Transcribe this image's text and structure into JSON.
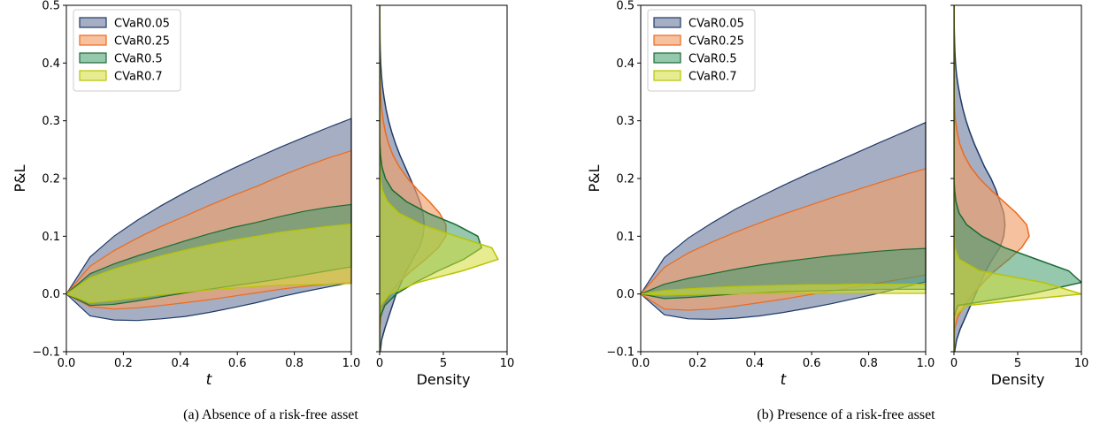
{
  "colors": {
    "CVaR0.05": {
      "fill": "#8e9ab4",
      "stroke": "#1f3a68",
      "alpha": 0.8
    },
    "CVaR0.25": {
      "fill": "#f0a06a",
      "stroke": "#ee6a1c",
      "alpha": 0.65
    },
    "CVaR0.5": {
      "fill": "#3f9a6b",
      "stroke": "#1b6b34",
      "alpha": 0.55
    },
    "CVaR0.7": {
      "fill": "#d4dc36",
      "stroke": "#b8c400",
      "alpha": 0.55
    }
  },
  "chart_data": [
    {
      "type": "area",
      "panel": "a-band",
      "caption": "(a) Absence of a risk-free asset",
      "xlabel": "t",
      "ylabel": "P&L",
      "xlim": [
        0,
        1
      ],
      "ylim": [
        -0.1,
        0.5
      ],
      "x_ticks": [
        "0.0",
        "0.2",
        "0.4",
        "0.6",
        "0.8",
        "1.0"
      ],
      "y_ticks": [
        "−0.1",
        "0.0",
        "0.1",
        "0.2",
        "0.3",
        "0.4",
        "0.5"
      ],
      "legend": [
        "CVaR0.05",
        "CVaR0.25",
        "CVaR0.5",
        "CVaR0.7"
      ],
      "legend_loc": "upper-left",
      "x": [
        0,
        0.083,
        0.167,
        0.25,
        0.333,
        0.417,
        0.5,
        0.583,
        0.667,
        0.75,
        0.833,
        0.917,
        1.0
      ],
      "series": [
        {
          "name": "CVaR0.05",
          "upper": [
            0,
            0.064,
            0.1,
            0.128,
            0.153,
            0.176,
            0.197,
            0.217,
            0.236,
            0.254,
            0.271,
            0.288,
            0.304
          ],
          "lower": [
            0,
            -0.038,
            -0.045,
            -0.046,
            -0.043,
            -0.039,
            -0.032,
            -0.024,
            -0.015,
            -0.005,
            0.004,
            0.012,
            0.02
          ]
        },
        {
          "name": "CVaR0.25",
          "upper": [
            0,
            0.048,
            0.075,
            0.097,
            0.117,
            0.135,
            0.153,
            0.17,
            0.186,
            0.204,
            0.22,
            0.235,
            0.248
          ],
          "lower": [
            0,
            -0.022,
            -0.026,
            -0.024,
            -0.02,
            -0.015,
            -0.01,
            -0.004,
            0.002,
            0.008,
            0.013,
            0.017,
            0.02
          ]
        },
        {
          "name": "CVaR0.5",
          "upper": [
            0,
            0.035,
            0.052,
            0.066,
            0.079,
            0.092,
            0.104,
            0.115,
            0.124,
            0.134,
            0.143,
            0.15,
            0.155
          ],
          "lower": [
            0,
            -0.02,
            -0.018,
            -0.012,
            -0.005,
            0.002,
            0.008,
            0.014,
            0.02,
            0.026,
            0.033,
            0.04,
            0.047
          ]
        },
        {
          "name": "CVaR0.7",
          "upper": [
            0,
            0.028,
            0.043,
            0.055,
            0.066,
            0.076,
            0.085,
            0.093,
            0.1,
            0.107,
            0.112,
            0.117,
            0.121
          ],
          "lower": [
            0,
            -0.015,
            -0.011,
            -0.006,
            -0.001,
            0.003,
            0.007,
            0.01,
            0.013,
            0.015,
            0.016,
            0.017,
            0.018
          ]
        }
      ]
    },
    {
      "type": "area",
      "panel": "a-density",
      "xlabel": "Density",
      "xlim": [
        0,
        10
      ],
      "ylim": [
        -0.1,
        0.5
      ],
      "x_ticks": [
        "0",
        "5",
        "10"
      ],
      "y": [
        -0.1,
        -0.08,
        -0.06,
        -0.04,
        -0.02,
        0,
        0.02,
        0.04,
        0.06,
        0.08,
        0.1,
        0.12,
        0.14,
        0.16,
        0.18,
        0.2,
        0.22,
        0.24,
        0.26,
        0.28,
        0.3,
        0.32,
        0.34,
        0.36,
        0.38,
        0.4,
        0.42,
        0.44,
        0.46,
        0.48,
        0.5
      ],
      "series": [
        {
          "name": "CVaR0.05",
          "density": [
            0.05,
            0.15,
            0.4,
            0.7,
            1.0,
            1.3,
            1.7,
            2.1,
            2.6,
            3.1,
            3.4,
            3.5,
            3.4,
            3.15,
            2.8,
            2.4,
            2.0,
            1.6,
            1.25,
            0.95,
            0.7,
            0.5,
            0.35,
            0.22,
            0.14,
            0.08,
            0.05,
            0.03,
            0.02,
            0.01,
            0.0
          ]
        },
        {
          "name": "CVaR0.25",
          "density": [
            0.0,
            0.0,
            0.02,
            0.1,
            0.35,
            0.8,
            1.5,
            2.5,
            3.6,
            4.6,
            5.2,
            5.2,
            4.7,
            3.9,
            3.0,
            2.2,
            1.55,
            1.05,
            0.7,
            0.45,
            0.28,
            0.16,
            0.09,
            0.05,
            0.02,
            0.01,
            0.0,
            0.0,
            0.0,
            0.0,
            0.0
          ]
        },
        {
          "name": "CVaR0.5",
          "density": [
            0.0,
            0.0,
            0.0,
            0.05,
            0.4,
            1.3,
            2.8,
            4.6,
            6.6,
            8.0,
            7.7,
            6.0,
            3.8,
            2.1,
            1.0,
            0.45,
            0.18,
            0.07,
            0.02,
            0.0,
            0.0,
            0.0,
            0.0,
            0.0,
            0.0,
            0.0,
            0.0,
            0.0,
            0.0,
            0.0,
            0.0
          ]
        },
        {
          "name": "CVaR0.7",
          "density": [
            0.0,
            0.0,
            0.0,
            0.0,
            0.05,
            0.8,
            3.0,
            6.5,
            9.3,
            8.8,
            6.0,
            3.3,
            1.5,
            0.6,
            0.2,
            0.06,
            0.01,
            0.0,
            0.0,
            0.0,
            0.0,
            0.0,
            0.0,
            0.0,
            0.0,
            0.0,
            0.0,
            0.0,
            0.0,
            0.0,
            0.0
          ]
        }
      ]
    },
    {
      "type": "area",
      "panel": "b-band",
      "caption": "(b) Presence of a risk-free asset",
      "xlabel": "t",
      "ylabel": "P&L",
      "xlim": [
        0,
        1
      ],
      "ylim": [
        -0.1,
        0.5
      ],
      "x_ticks": [
        "0.0",
        "0.2",
        "0.4",
        "0.6",
        "0.8",
        "1.0"
      ],
      "y_ticks": [
        "−0.1",
        "0.0",
        "0.1",
        "0.2",
        "0.3",
        "0.4",
        "0.5"
      ],
      "legend": [
        "CVaR0.05",
        "CVaR0.25",
        "CVaR0.5",
        "CVaR0.7"
      ],
      "legend_loc": "upper-left",
      "x": [
        0,
        0.083,
        0.167,
        0.25,
        0.333,
        0.417,
        0.5,
        0.583,
        0.667,
        0.75,
        0.833,
        0.917,
        1.0
      ],
      "series": [
        {
          "name": "CVaR0.05",
          "upper": [
            0,
            0.063,
            0.097,
            0.123,
            0.147,
            0.168,
            0.188,
            0.207,
            0.225,
            0.243,
            0.261,
            0.279,
            0.297
          ],
          "lower": [
            0,
            -0.036,
            -0.043,
            -0.044,
            -0.042,
            -0.038,
            -0.032,
            -0.025,
            -0.017,
            -0.008,
            0.001,
            0.011,
            0.021
          ]
        },
        {
          "name": "CVaR0.25",
          "upper": [
            0,
            0.046,
            0.071,
            0.09,
            0.107,
            0.123,
            0.138,
            0.152,
            0.166,
            0.179,
            0.192,
            0.205,
            0.217
          ],
          "lower": [
            0,
            -0.026,
            -0.028,
            -0.026,
            -0.021,
            -0.015,
            -0.009,
            -0.002,
            0.005,
            0.012,
            0.019,
            0.026,
            0.033
          ]
        },
        {
          "name": "CVaR0.5",
          "upper": [
            0,
            0.017,
            0.027,
            0.035,
            0.043,
            0.05,
            0.056,
            0.061,
            0.066,
            0.07,
            0.074,
            0.077,
            0.079
          ],
          "lower": [
            0,
            -0.008,
            -0.006,
            -0.003,
            0.0,
            0.002,
            0.004,
            0.005,
            0.006,
            0.007,
            0.008,
            0.008,
            0.008
          ]
        },
        {
          "name": "CVaR0.7",
          "upper": [
            0,
            0.006,
            0.009,
            0.011,
            0.013,
            0.014,
            0.015,
            0.016,
            0.016,
            0.017,
            0.017,
            0.017,
            0.017
          ],
          "lower": [
            0,
            -0.002,
            -0.001,
            0.0,
            0.0,
            0.001,
            0.001,
            0.001,
            0.001,
            0.001,
            0.001,
            0.001,
            0.001
          ]
        }
      ]
    },
    {
      "type": "area",
      "panel": "b-density",
      "xlabel": "Density",
      "xlim": [
        0,
        10
      ],
      "ylim": [
        -0.1,
        0.5
      ],
      "x_ticks": [
        "0",
        "5",
        "10"
      ],
      "y": [
        -0.1,
        -0.08,
        -0.06,
        -0.04,
        -0.02,
        0,
        0.02,
        0.04,
        0.06,
        0.08,
        0.1,
        0.12,
        0.14,
        0.16,
        0.18,
        0.2,
        0.22,
        0.24,
        0.26,
        0.28,
        0.3,
        0.32,
        0.34,
        0.36,
        0.38,
        0.4,
        0.42,
        0.44,
        0.46,
        0.48,
        0.5
      ],
      "series": [
        {
          "name": "CVaR0.05",
          "density": [
            0.05,
            0.2,
            0.5,
            0.9,
            1.3,
            1.7,
            2.1,
            2.5,
            3.0,
            3.6,
            3.9,
            4.0,
            3.9,
            3.6,
            3.3,
            2.9,
            2.4,
            2.0,
            1.6,
            1.25,
            0.95,
            0.7,
            0.5,
            0.33,
            0.2,
            0.12,
            0.07,
            0.04,
            0.02,
            0.01,
            0.0
          ]
        },
        {
          "name": "CVaR0.25",
          "density": [
            0.0,
            0.0,
            0.05,
            0.3,
            0.8,
            1.5,
            2.3,
            3.2,
            4.3,
            5.3,
            5.9,
            5.7,
            4.9,
            3.9,
            2.9,
            2.0,
            1.3,
            0.8,
            0.45,
            0.25,
            0.12,
            0.05,
            0.02,
            0.01,
            0.0,
            0.0,
            0.0,
            0.0,
            0.0,
            0.0,
            0.0
          ]
        },
        {
          "name": "CVaR0.5",
          "density": [
            0.0,
            0.0,
            0.0,
            0.0,
            0.3,
            6.0,
            10.0,
            9.0,
            6.5,
            4.0,
            2.2,
            1.0,
            0.4,
            0.15,
            0.05,
            0.0,
            0.0,
            0.0,
            0.0,
            0.0,
            0.0,
            0.0,
            0.0,
            0.0,
            0.0,
            0.0,
            0.0,
            0.0,
            0.0,
            0.0,
            0.0
          ]
        },
        {
          "name": "CVaR0.7",
          "density": [
            0.0,
            0.0,
            0.0,
            0.0,
            1.0,
            10.0,
            7.0,
            2.0,
            0.4,
            0.05,
            0.0,
            0.0,
            0.0,
            0.0,
            0.0,
            0.0,
            0.0,
            0.0,
            0.0,
            0.0,
            0.0,
            0.0,
            0.0,
            0.0,
            0.0,
            0.0,
            0.0,
            0.0,
            0.0,
            0.0,
            0.0
          ]
        }
      ]
    }
  ]
}
